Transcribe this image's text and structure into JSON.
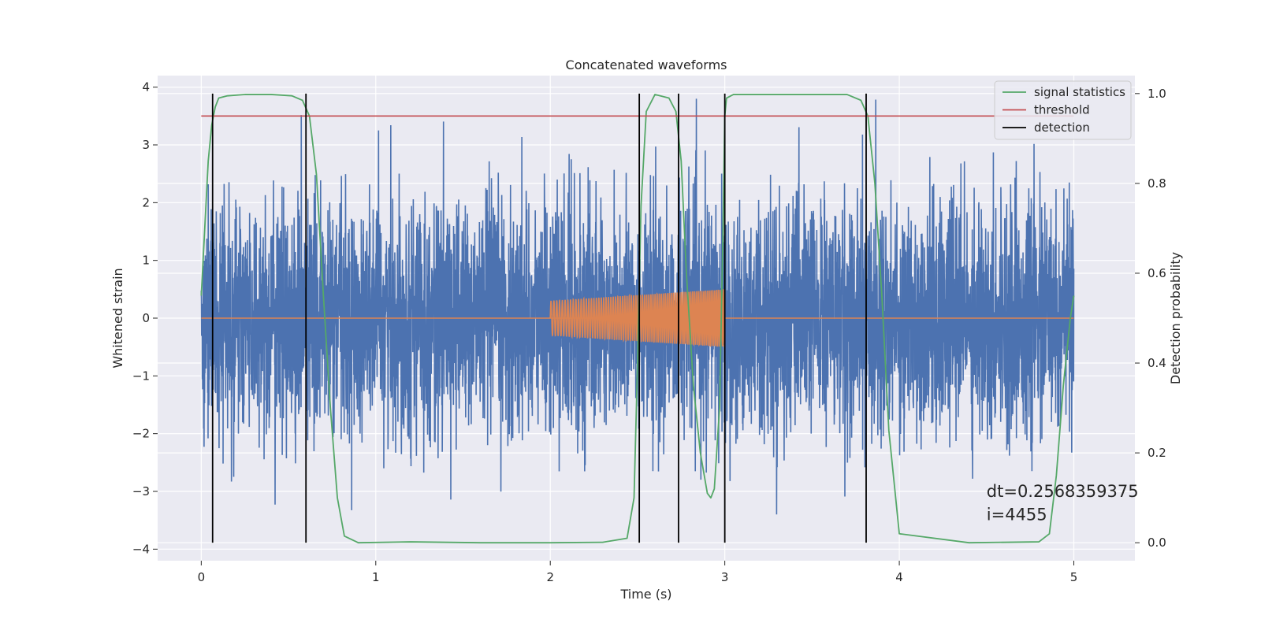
{
  "chart_data": {
    "type": "line",
    "title": "Concatenated waveforms",
    "xlabel": "Time (s)",
    "ylabel": "Whitened strain",
    "y2label": "Detection probability",
    "xlim": [
      -0.25,
      5.35
    ],
    "ylim": [
      -4.2,
      4.2
    ],
    "y2lim": [
      -0.04,
      1.04
    ],
    "xticks": [
      0,
      1,
      2,
      3,
      4,
      5
    ],
    "xtick_labels": [
      "0",
      "1",
      "2",
      "3",
      "4",
      "5"
    ],
    "yticks": [
      -4,
      -3,
      -2,
      -1,
      0,
      1,
      2,
      3,
      4
    ],
    "ytick_labels": [
      "−4",
      "−3",
      "−2",
      "−1",
      "0",
      "1",
      "2",
      "3",
      "4"
    ],
    "y2ticks": [
      0.0,
      0.2,
      0.4,
      0.6,
      0.8,
      1.0
    ],
    "y2tick_labels": [
      "0.0",
      "0.2",
      "0.4",
      "0.6",
      "0.8",
      "1.0"
    ],
    "grid": true,
    "legend_position": "top-right",
    "legend": [
      {
        "label": "signal statistics",
        "color": "#55a868"
      },
      {
        "label": "threshold",
        "color": "#c44e52"
      },
      {
        "label": "detection",
        "color": "#000000"
      }
    ],
    "series": [
      {
        "kind": "whitened-noise",
        "color": "#4c72b0",
        "x_range": [
          0,
          5
        ],
        "approx_range": [
          -3.85,
          3.8
        ]
      },
      {
        "kind": "chirp-template",
        "color": "#dd8452",
        "segments": [
          {
            "x_start": 2.0,
            "x_end": 3.0,
            "amp_start": 0.3,
            "amp_end": 0.5
          }
        ]
      },
      {
        "name": "signal statistics",
        "color": "#55a868",
        "axis": "y2",
        "x": [
          0,
          0.02,
          0.04,
          0.06,
          0.08,
          0.1,
          0.15,
          0.25,
          0.4,
          0.52,
          0.58,
          0.62,
          0.66,
          0.7,
          0.74,
          0.78,
          0.82,
          0.9,
          1.2,
          1.6,
          2.0,
          2.3,
          2.44,
          2.48,
          2.5,
          2.52,
          2.55,
          2.6,
          2.68,
          2.72,
          2.75,
          2.78,
          2.82,
          2.86,
          2.9,
          2.92,
          2.94,
          2.97,
          2.99,
          3.0,
          3.01,
          3.05,
          3.3,
          3.7,
          3.78,
          3.82,
          3.86,
          3.9,
          3.94,
          4.0,
          4.4,
          4.8,
          4.86,
          4.9,
          4.94,
          4.98,
          5.0
        ],
        "y": [
          0.55,
          0.7,
          0.85,
          0.93,
          0.97,
          0.99,
          0.995,
          0.998,
          0.998,
          0.995,
          0.985,
          0.95,
          0.82,
          0.55,
          0.3,
          0.1,
          0.015,
          0.0,
          0.002,
          0.0,
          0.0,
          0.001,
          0.01,
          0.1,
          0.4,
          0.75,
          0.96,
          0.998,
          0.99,
          0.96,
          0.85,
          0.6,
          0.35,
          0.2,
          0.11,
          0.1,
          0.12,
          0.3,
          0.7,
          0.95,
          0.99,
          0.998,
          0.998,
          0.998,
          0.985,
          0.95,
          0.8,
          0.55,
          0.25,
          0.02,
          0.0,
          0.002,
          0.02,
          0.15,
          0.35,
          0.5,
          0.55
        ]
      },
      {
        "name": "threshold",
        "color": "#c44e52",
        "axis": "y2",
        "x": [
          0,
          5
        ],
        "y": [
          0.95,
          0.95
        ]
      },
      {
        "name": "detection",
        "color": "#000000",
        "kind": "vlines",
        "x": [
          0.065,
          0.6,
          2.51,
          2.735,
          3.0,
          3.81
        ]
      }
    ],
    "annotations": [
      {
        "text": "dt=0.2568359375",
        "x": 4.5,
        "y": -3.0
      },
      {
        "text": " i=4455",
        "x": 4.5,
        "y": -3.4
      }
    ]
  }
}
